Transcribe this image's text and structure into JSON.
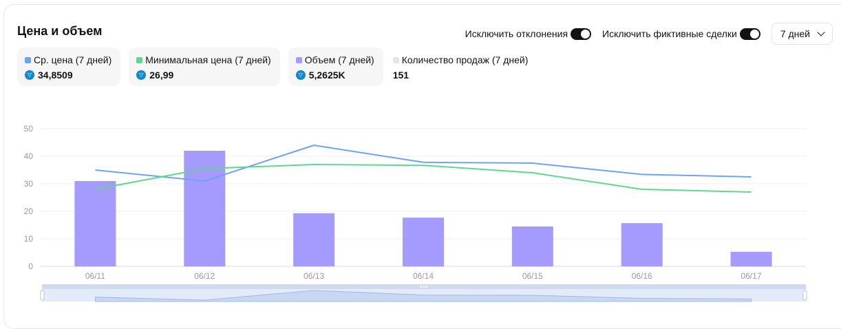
{
  "header": {
    "title": "Цена и объем",
    "toggle_outliers_label": "Исключить отклонения",
    "toggle_fake_label": "Исключить фиктивные сделки",
    "period_value": "7 дней"
  },
  "stats": [
    {
      "label": "Ср. цена (7 дней)",
      "value": "34,8509",
      "color": "#6ea3f0",
      "icon": "ton-icon"
    },
    {
      "label": "Минимальная цена (7 дней)",
      "value": "26,99",
      "color": "#5ed88a",
      "icon": "ton-icon"
    },
    {
      "label": "Объем (7 дней)",
      "value": "5,2625K",
      "color": "#a59bff",
      "icon": "ton-icon"
    },
    {
      "label": "Количество продаж (7 дней)",
      "value": "151",
      "color": "#e5e5e5",
      "icon": ""
    }
  ],
  "chart_data": {
    "type": "bar",
    "categories": [
      "06/11",
      "06/12",
      "06/13",
      "06/14",
      "06/15",
      "06/16",
      "06/17"
    ],
    "ylim": [
      0,
      50
    ],
    "yticks": [
      0,
      10,
      20,
      30,
      40,
      50
    ],
    "grid": true,
    "series": [
      {
        "name": "Объем (7 дней)",
        "kind": "bar",
        "color": "#a59bff",
        "values": [
          31,
          42,
          19.3,
          17.7,
          14.5,
          15.7,
          5.3
        ]
      },
      {
        "name": "Ср. цена (7 дней)",
        "kind": "line",
        "color": "#6ea3f0",
        "values": [
          35,
          31,
          44,
          37.8,
          37.5,
          33.4,
          32.5
        ]
      },
      {
        "name": "Минимальная цена (7 дней)",
        "kind": "line",
        "color": "#5ed88a",
        "values": [
          28,
          35.5,
          37,
          36.7,
          34,
          28,
          27
        ]
      }
    ]
  }
}
